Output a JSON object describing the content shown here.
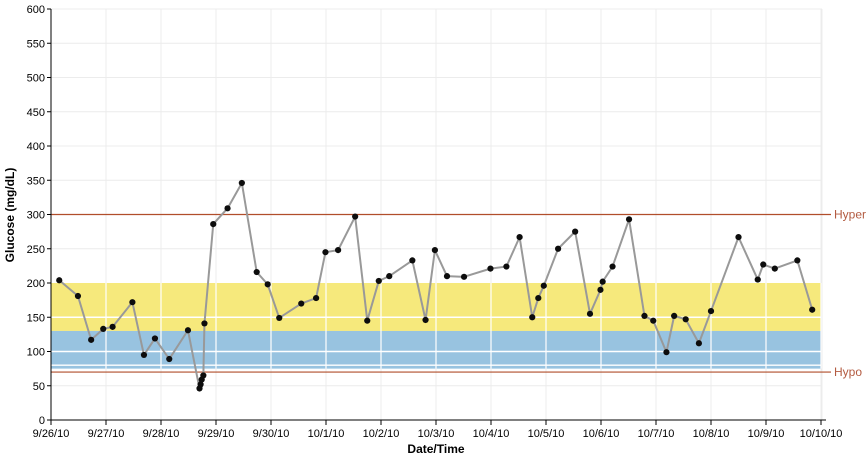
{
  "chart": {
    "y_axis_title": "Glucose (mg/dL)",
    "x_axis_title": "Date/Time"
  },
  "chart_data": {
    "type": "line",
    "title": "",
    "xlabel": "Date/Time",
    "ylabel": "Glucose (mg/dL)",
    "ylim": [
      0,
      600
    ],
    "y_tick_step": 50,
    "y_ticks": [
      0,
      50,
      100,
      150,
      200,
      250,
      300,
      350,
      400,
      450,
      500,
      550,
      600
    ],
    "x_tick_labels": [
      "9/26/10",
      "9/27/10",
      "9/28/10",
      "9/29/10",
      "9/30/10",
      "10/1/10",
      "10/2/10",
      "10/3/10",
      "10/4/10",
      "10/5/10",
      "10/6/10",
      "10/7/10",
      "10/8/10",
      "10/9/10",
      "10/10/10"
    ],
    "x_days_span": 14,
    "grid": true,
    "legend": "none",
    "bands": [
      {
        "name": "above-target-band",
        "from": 130,
        "to": 200,
        "color": "#F6E97C"
      },
      {
        "name": "target-band",
        "from": 80,
        "to": 130,
        "color": "#98C3E0"
      },
      {
        "name": "low-target-band",
        "from": 75,
        "to": 80,
        "color": "#98C3E0"
      }
    ],
    "band_separator_values": [
      150,
      100,
      80
    ],
    "reference_lines": [
      {
        "name": "hyper-line",
        "label": "Hyper",
        "value": 300
      },
      {
        "name": "hypo-line",
        "label": "Hypo",
        "value": 70
      }
    ],
    "series": [
      {
        "name": "glucose",
        "points_format": [
          "days_after_9/26/10",
          "mg/dL"
        ],
        "points": [
          [
            0.15,
            204
          ],
          [
            0.49,
            181
          ],
          [
            0.73,
            117
          ],
          [
            0.95,
            133
          ],
          [
            1.12,
            136
          ],
          [
            1.48,
            172
          ],
          [
            1.69,
            95
          ],
          [
            1.89,
            119
          ],
          [
            2.15,
            89
          ],
          [
            2.49,
            131
          ],
          [
            2.7,
            46
          ],
          [
            2.72,
            52
          ],
          [
            2.74,
            59
          ],
          [
            2.77,
            65
          ],
          [
            2.79,
            141
          ],
          [
            2.95,
            286
          ],
          [
            3.21,
            309
          ],
          [
            3.47,
            346
          ],
          [
            3.74,
            216
          ],
          [
            3.94,
            198
          ],
          [
            4.15,
            149
          ],
          [
            4.55,
            170
          ],
          [
            4.82,
            178
          ],
          [
            4.99,
            245
          ],
          [
            5.22,
            248
          ],
          [
            5.53,
            297
          ],
          [
            5.75,
            145
          ],
          [
            5.96,
            203
          ],
          [
            6.15,
            210
          ],
          [
            6.57,
            233
          ],
          [
            6.81,
            146
          ],
          [
            6.98,
            248
          ],
          [
            7.2,
            210
          ],
          [
            7.51,
            209
          ],
          [
            7.99,
            221
          ],
          [
            8.28,
            224
          ],
          [
            8.52,
            267
          ],
          [
            8.75,
            150
          ],
          [
            8.86,
            178
          ],
          [
            8.96,
            196
          ],
          [
            9.22,
            250
          ],
          [
            9.53,
            275
          ],
          [
            9.8,
            155
          ],
          [
            9.99,
            190
          ],
          [
            10.03,
            202
          ],
          [
            10.21,
            224
          ],
          [
            10.51,
            293
          ],
          [
            10.79,
            152
          ],
          [
            10.95,
            145
          ],
          [
            11.19,
            99
          ],
          [
            11.33,
            152
          ],
          [
            11.54,
            147
          ],
          [
            11.78,
            112
          ],
          [
            12.0,
            159
          ],
          [
            12.5,
            267
          ],
          [
            12.85,
            205
          ],
          [
            12.95,
            227
          ],
          [
            13.16,
            221
          ],
          [
            13.57,
            233
          ],
          [
            13.84,
            161
          ]
        ]
      }
    ],
    "colors": {
      "line": "#999999",
      "marker": "#0d0d0d",
      "grid": "#ECECEC",
      "band_grid": "#FFFFFF",
      "reference_line": "#B14E2B",
      "reference_label": "#B35B41",
      "axis": "#000000"
    }
  }
}
